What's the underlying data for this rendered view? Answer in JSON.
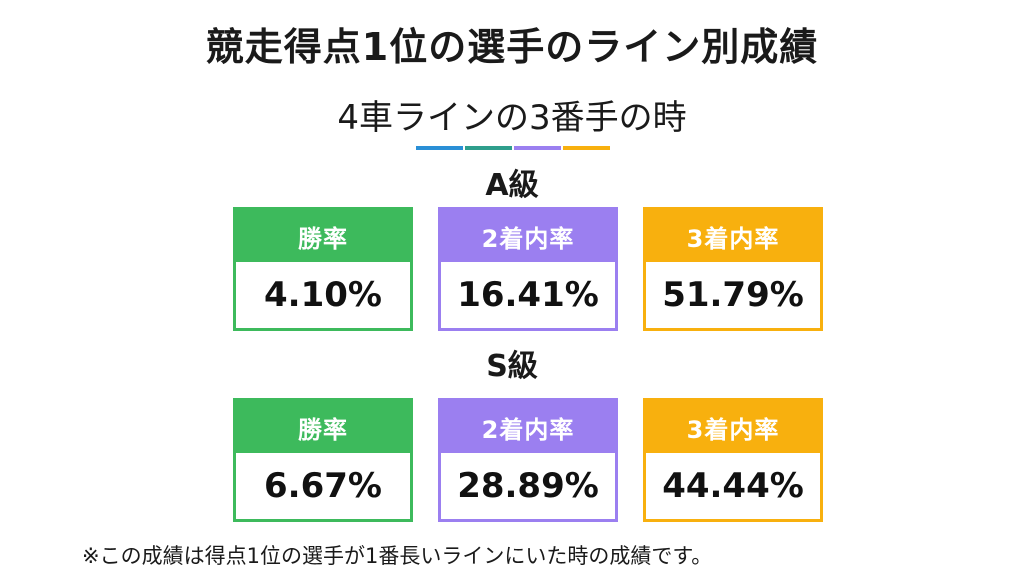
{
  "title": "競走得点1位の選手のライン別成績",
  "subtitle": "4車ラインの3番手の時",
  "colors": {
    "green": "#3dba5c",
    "purple": "#9b7ff0",
    "orange": "#f8b00e",
    "blue": "#2a8fd6",
    "dark_green": "#2e9e8c"
  },
  "grades": [
    {
      "label": "A級",
      "cards": [
        {
          "header": "勝率",
          "value": "4.10%"
        },
        {
          "header": "2着内率",
          "value": "16.41%"
        },
        {
          "header": "3着内率",
          "value": "51.79%"
        }
      ]
    },
    {
      "label": "S級",
      "cards": [
        {
          "header": "勝率",
          "value": "6.67%"
        },
        {
          "header": "2着内率",
          "value": "28.89%"
        },
        {
          "header": "3着内率",
          "value": "44.44%"
        }
      ]
    }
  ],
  "footnote": "※この成績は得点1位の選手が1番長いラインにいた時の成績です。"
}
